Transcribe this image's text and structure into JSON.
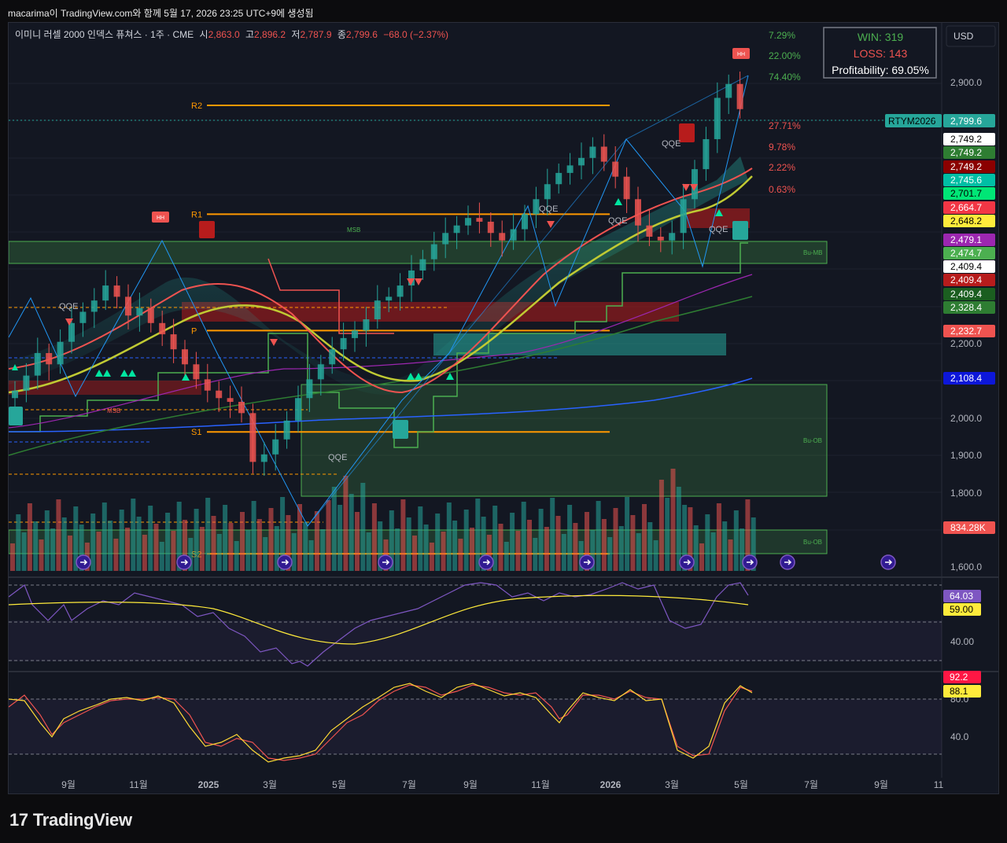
{
  "header": {
    "caption": "macarima이 TradingView.com와 함께 5월 17, 2026 23:25 UTC+9에 생성됨"
  },
  "symbol": {
    "name": "이미니 러셀 2000 인덱스 퓨쳐스 · 1주 · CME",
    "o_label": "시",
    "o": "2,863.0",
    "h_label": "고",
    "h": "2,896.2",
    "l_label": "저",
    "l": "2,787.9",
    "c_label": "종",
    "c": "2,799.6",
    "chg": "−68.0 (−2.37%)"
  },
  "currency": "USD",
  "stats": {
    "win": "WIN: 319",
    "loss": "LOSS: 143",
    "profit": "Profitability: 69.05%"
  },
  "brand": {
    "logo": "17",
    "name": "TradingView"
  },
  "chart_data": [
    {
      "type": "candlestick",
      "title": "",
      "ylim": [
        1580,
        3030
      ],
      "y_ticks": [
        "2,900.0",
        "2,200.0",
        "2,000.0",
        "1,900.0",
        "1,800.0",
        "1,600.0"
      ],
      "x_ticks": [
        "9월",
        "11월",
        "2025",
        "3월",
        "5월",
        "7월",
        "9월",
        "11월",
        "2026",
        "3월",
        "5월",
        "7월",
        "9월",
        "11"
      ],
      "last_price_tag": {
        "symbol": "RTYM2026",
        "value": "2,799.6",
        "color": "#26a69a"
      },
      "price_tags": [
        {
          "value": "2,749.2",
          "bg": "#ffffff",
          "fg": "#000000"
        },
        {
          "value": "2,749.2",
          "bg": "#2e7d32",
          "fg": "#ffffff"
        },
        {
          "value": "2,749.2",
          "bg": "#8b0000",
          "fg": "#ffffff"
        },
        {
          "value": "2,745.6",
          "bg": "#00bfa5",
          "fg": "#ffffff"
        },
        {
          "value": "2,701.7",
          "bg": "#00e676",
          "fg": "#000000"
        },
        {
          "value": "2,664.7",
          "bg": "#f23645",
          "fg": "#ffffff"
        },
        {
          "value": "2,648.2",
          "bg": "#ffeb3b",
          "fg": "#000000"
        },
        {
          "value": "2,479.1",
          "bg": "#9c27b0",
          "fg": "#ffffff"
        },
        {
          "value": "2,474.7",
          "bg": "#4caf50",
          "fg": "#ffffff"
        },
        {
          "value": "2,409.4",
          "bg": "#ffffff",
          "fg": "#000000"
        },
        {
          "value": "2,409.4",
          "bg": "#b71c1c",
          "fg": "#ffffff"
        },
        {
          "value": "2,409.4",
          "bg": "#1b5e20",
          "fg": "#ffffff"
        },
        {
          "value": "2,328.4",
          "bg": "#2e7d32",
          "fg": "#ffffff"
        },
        {
          "value": "2,232.7",
          "bg": "#ef5350",
          "fg": "#ffffff"
        },
        {
          "value": "2,108.4",
          "bg": "#0d17d9",
          "fg": "#ffffff"
        },
        {
          "value": "834.28K",
          "bg": "#ef5350",
          "fg": "#ffffff"
        }
      ],
      "pivot_levels": [
        {
          "label": "R2",
          "price": 2810
        },
        {
          "label": "R1",
          "price": 2520
        },
        {
          "label": "P",
          "price": 2210
        },
        {
          "label": "S1",
          "price": 1940
        },
        {
          "label": "S2",
          "price": 1615
        }
      ],
      "percent_labels": [
        {
          "text": "7.29%",
          "color": "#4caf50"
        },
        {
          "text": "22.00%",
          "color": "#4caf50"
        },
        {
          "text": "74.40%",
          "color": "#4caf50"
        },
        {
          "text": "27.71%",
          "color": "#ef5350"
        },
        {
          "text": "9.78%",
          "color": "#ef5350"
        },
        {
          "text": "2.22%",
          "color": "#ef5350"
        },
        {
          "text": "0.63%",
          "color": "#ef5350"
        }
      ],
      "zones": [
        {
          "label": "Bu-MB",
          "from": 2460,
          "to": 2520
        },
        {
          "label": "Bu-OB",
          "from": 1795,
          "to": 2090
        },
        {
          "label": "Bu-OB",
          "from": 1620,
          "to": 1680
        }
      ],
      "markers": {
        "hh": "HH",
        "qqe": "QQE",
        "msb": "MSB"
      },
      "close": [
        2050,
        2090,
        2150,
        2120,
        2180,
        2230,
        2260,
        2290,
        2330,
        2300,
        2250,
        2270,
        2230,
        2200,
        2160,
        2120,
        2080,
        2050,
        2030,
        2020,
        1990,
        1860,
        1880,
        1920,
        1970,
        2030,
        2080,
        2120,
        2160,
        2190,
        2210,
        2240,
        2290,
        2300,
        2330,
        2370,
        2400,
        2440,
        2470,
        2490,
        2510,
        2500,
        2470,
        2450,
        2480,
        2520,
        2560,
        2600,
        2630,
        2650,
        2670,
        2700,
        2660,
        2620,
        2560,
        2490,
        2460,
        2450,
        2470,
        2560,
        2640,
        2720,
        2830,
        2867,
        2800
      ]
    },
    {
      "type": "line",
      "title": "",
      "ylim": [
        20,
        80
      ],
      "y_ticks": [
        "40.00"
      ],
      "series_tags": [
        {
          "value": "64.03",
          "bg": "#7e57c2"
        },
        {
          "value": "59.00",
          "bg": "#ffeb3b"
        }
      ]
    },
    {
      "type": "line",
      "title": "",
      "ylim": [
        20,
        100
      ],
      "y_ticks": [
        "80.0",
        "40.0"
      ],
      "series_tags": [
        {
          "value": "92.2",
          "bg": "#ff1744"
        },
        {
          "value": "88.1",
          "bg": "#ffeb3b"
        }
      ]
    }
  ]
}
